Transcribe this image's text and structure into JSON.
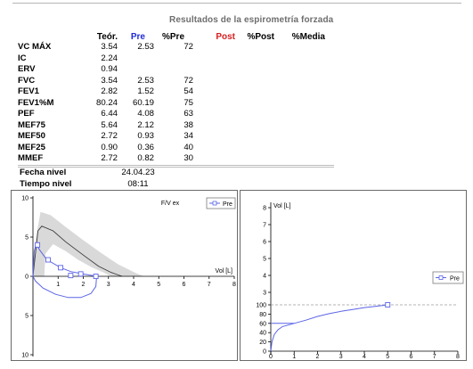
{
  "report": {
    "title": "Resultados de la espirometría forzada",
    "columns": {
      "pred": "Teór.",
      "pre": "Pre",
      "pct_pre": "%Pre",
      "post": "Post",
      "pct_post": "%Post",
      "pct_mean": "%Media"
    },
    "rows": [
      {
        "param": "VC MÁX",
        "pred": "3.54",
        "pre": "2.53",
        "pct_pre": "72"
      },
      {
        "param": "IC",
        "pred": "2.24",
        "pre": "",
        "pct_pre": ""
      },
      {
        "param": "ERV",
        "pred": "0.94",
        "pre": "",
        "pct_pre": ""
      },
      {
        "param": "FVC",
        "pred": "3.54",
        "pre": "2.53",
        "pct_pre": "72"
      },
      {
        "param": "FEV1",
        "pred": "2.82",
        "pre": "1.52",
        "pct_pre": "54"
      },
      {
        "param": "FEV1%M",
        "pred": "80.24",
        "pre": "60.19",
        "pct_pre": "75"
      },
      {
        "param": "PEF",
        "pred": "6.44",
        "pre": "4.08",
        "pct_pre": "63"
      },
      {
        "param": "MEF75",
        "pred": "5.64",
        "pre": "2.12",
        "pct_pre": "38"
      },
      {
        "param": "MEF50",
        "pred": "2.72",
        "pre": "0.93",
        "pct_pre": "34"
      },
      {
        "param": "MEF25",
        "pred": "0.90",
        "pre": "0.36",
        "pct_pre": "40"
      },
      {
        "param": "MMEF",
        "pred": "2.72",
        "pre": "0.82",
        "pct_pre": "30"
      }
    ],
    "level_date_label": "Fecha nivel",
    "level_date": "24.04.23",
    "level_time_label": "Tiempo nivel",
    "level_time": "08:11"
  },
  "chart_data": [
    {
      "type": "line",
      "title": "F/V ex",
      "xlabel": "Vol [L]",
      "ylabel": "",
      "xlim": [
        0,
        8
      ],
      "ylim": [
        -10,
        10
      ],
      "x_ticks": [
        1,
        2,
        3,
        4,
        5,
        6,
        7,
        8
      ],
      "y_ticks": [
        10,
        5,
        0,
        5,
        10
      ],
      "legend": {
        "position": "top-right",
        "entries": [
          "Pre"
        ]
      },
      "predicted_band": {
        "upper": [
          [
            0,
            0
          ],
          [
            0.1,
            4.5
          ],
          [
            0.3,
            8.2
          ],
          [
            0.7,
            7.8
          ],
          [
            1.3,
            6.3
          ],
          [
            2.0,
            4.6
          ],
          [
            2.7,
            3.0
          ],
          [
            3.4,
            1.5
          ],
          [
            4.1,
            0.4
          ],
          [
            4.4,
            0
          ]
        ],
        "lower": [
          [
            0.45,
            0
          ],
          [
            0.5,
            2.9
          ],
          [
            0.8,
            4.1
          ],
          [
            1.3,
            3.2
          ],
          [
            1.8,
            2.1
          ],
          [
            2.3,
            1.2
          ],
          [
            2.8,
            0.5
          ],
          [
            3.1,
            0
          ]
        ]
      },
      "predicted_curve": [
        [
          0,
          0
        ],
        [
          0.2,
          5.8
        ],
        [
          0.35,
          6.4
        ],
        [
          0.8,
          5.8
        ],
        [
          1.3,
          4.4
        ],
        [
          2.0,
          2.7
        ],
        [
          2.6,
          1.3
        ],
        [
          3.1,
          0.5
        ],
        [
          3.54,
          0
        ]
      ],
      "series": [
        {
          "name": "Pre",
          "values": [
            [
              0,
              0
            ],
            [
              0.05,
              3.2
            ],
            [
              0.12,
              4.08
            ],
            [
              0.3,
              3.2
            ],
            [
              0.55,
              2.12
            ],
            [
              1.1,
              1.1
            ],
            [
              1.5,
              0.6
            ],
            [
              2.0,
              0.3
            ],
            [
              2.53,
              0
            ]
          ],
          "markers": [
            [
              0.18,
              4.0
            ],
            [
              0.6,
              2.1
            ],
            [
              1.1,
              1.1
            ],
            [
              1.5,
              0.1
            ],
            [
              1.9,
              0.3
            ],
            [
              2.5,
              0
            ]
          ],
          "inspiratory": [
            [
              2.53,
              0
            ],
            [
              2.5,
              -1.3
            ],
            [
              2.3,
              -2.2
            ],
            [
              1.9,
              -2.7
            ],
            [
              1.4,
              -2.7
            ],
            [
              0.9,
              -2.3
            ],
            [
              0.4,
              -1.5
            ],
            [
              0.1,
              -0.6
            ],
            [
              0,
              0
            ]
          ]
        }
      ]
    },
    {
      "type": "line",
      "title": "",
      "ylabel": "Vol [L]",
      "xlabel": "",
      "xlim": [
        0,
        8
      ],
      "ylim": [
        0,
        8
      ],
      "y_ticks_upper": [
        8,
        7,
        6,
        5,
        4,
        3
      ],
      "y_ticks_lower": [
        100,
        80,
        60,
        40,
        20,
        0
      ],
      "x_ticks": [
        0,
        1,
        2,
        3,
        4,
        5,
        6,
        7,
        8
      ],
      "reference_line": 100,
      "legend": {
        "position": "middle-right",
        "entries": [
          "Pre"
        ]
      },
      "series": [
        {
          "name": "Pre",
          "values": [
            [
              0,
              0
            ],
            [
              0.05,
              20
            ],
            [
              0.15,
              36
            ],
            [
              0.3,
              46
            ],
            [
              0.5,
              53
            ],
            [
              1.0,
              60
            ],
            [
              1.5,
              67
            ],
            [
              2.0,
              75
            ],
            [
              2.5,
              81
            ],
            [
              3.0,
              86
            ],
            [
              3.5,
              90
            ],
            [
              4.0,
              94
            ],
            [
              4.5,
              97
            ],
            [
              5.0,
              100
            ]
          ],
          "marker": [
            5.0,
            100
          ],
          "fev1_marker": [
            [
              0,
              60
            ],
            [
              1.0,
              60
            ]
          ]
        }
      ]
    }
  ]
}
